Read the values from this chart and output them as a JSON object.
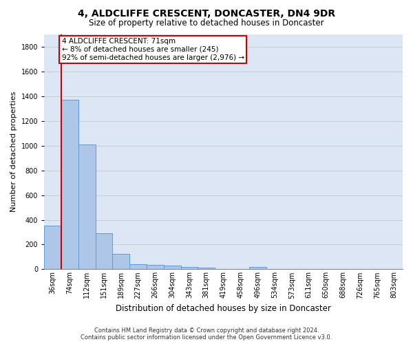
{
  "title": "4, ALDCLIFFE CRESCENT, DONCASTER, DN4 9DR",
  "subtitle": "Size of property relative to detached houses in Doncaster",
  "xlabel": "Distribution of detached houses by size in Doncaster",
  "ylabel": "Number of detached properties",
  "footer1": "Contains HM Land Registry data © Crown copyright and database right 2024.",
  "footer2": "Contains public sector information licensed under the Open Government Licence v3.0.",
  "categories": [
    "36sqm",
    "74sqm",
    "112sqm",
    "151sqm",
    "189sqm",
    "227sqm",
    "266sqm",
    "304sqm",
    "343sqm",
    "381sqm",
    "419sqm",
    "458sqm",
    "496sqm",
    "534sqm",
    "573sqm",
    "611sqm",
    "650sqm",
    "688sqm",
    "726sqm",
    "765sqm",
    "803sqm"
  ],
  "values": [
    355,
    1370,
    1010,
    290,
    125,
    42,
    35,
    30,
    20,
    15,
    0,
    0,
    20,
    0,
    0,
    0,
    0,
    0,
    0,
    0,
    0
  ],
  "bar_color": "#aec6e8",
  "bar_edge_color": "#5b9bd5",
  "grid_color": "#cccccc",
  "bg_color": "#dce6f5",
  "annotation_line1": "4 ALDCLIFFE CRESCENT: 71sqm",
  "annotation_line2": "← 8% of detached houses are smaller (245)",
  "annotation_line3": "92% of semi-detached houses are larger (2,976) →",
  "annotation_box_color": "#cc0000",
  "vline_color": "#cc0000",
  "vline_x_index": 0.5,
  "ylim": [
    0,
    1900
  ],
  "yticks": [
    0,
    200,
    400,
    600,
    800,
    1000,
    1200,
    1400,
    1600,
    1800
  ],
  "title_fontsize": 10,
  "subtitle_fontsize": 8.5,
  "ylabel_fontsize": 8,
  "xlabel_fontsize": 8.5,
  "tick_fontsize": 7,
  "footer_fontsize": 6,
  "annotation_fontsize": 7.5
}
